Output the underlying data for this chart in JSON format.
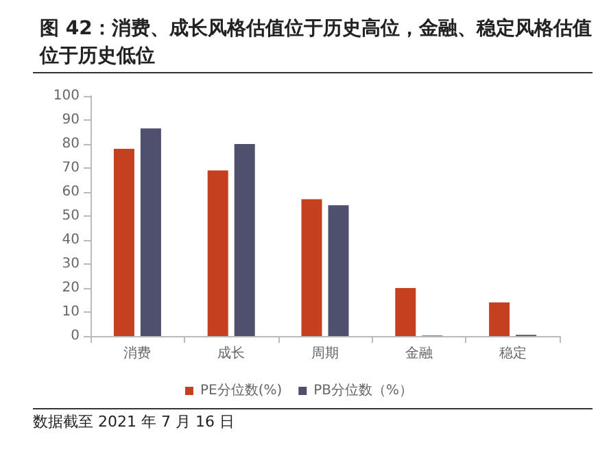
{
  "chart_data": {
    "type": "bar",
    "title": "图 42：消费、成长风格估值位于历史高位，金融、稳定风格估值位于历史低位",
    "categories": [
      "消费",
      "成长",
      "周期",
      "金融",
      "稳定"
    ],
    "series": [
      {
        "name": "PE分位数(%)",
        "color": "#c5401f",
        "values": [
          78,
          69,
          57,
          20,
          14
        ]
      },
      {
        "name": "PB分位数（%）",
        "color": "#4f4f6e",
        "values": [
          86.5,
          80,
          54.5,
          0.2,
          0.5
        ]
      }
    ],
    "ylim": [
      0,
      100
    ],
    "yticks": [
      0,
      10,
      20,
      30,
      40,
      50,
      60,
      70,
      80,
      90,
      100
    ],
    "grid": false,
    "legend": "bottom",
    "annotations": [
      "数据截至 2021 年 7 月 16 日"
    ]
  }
}
